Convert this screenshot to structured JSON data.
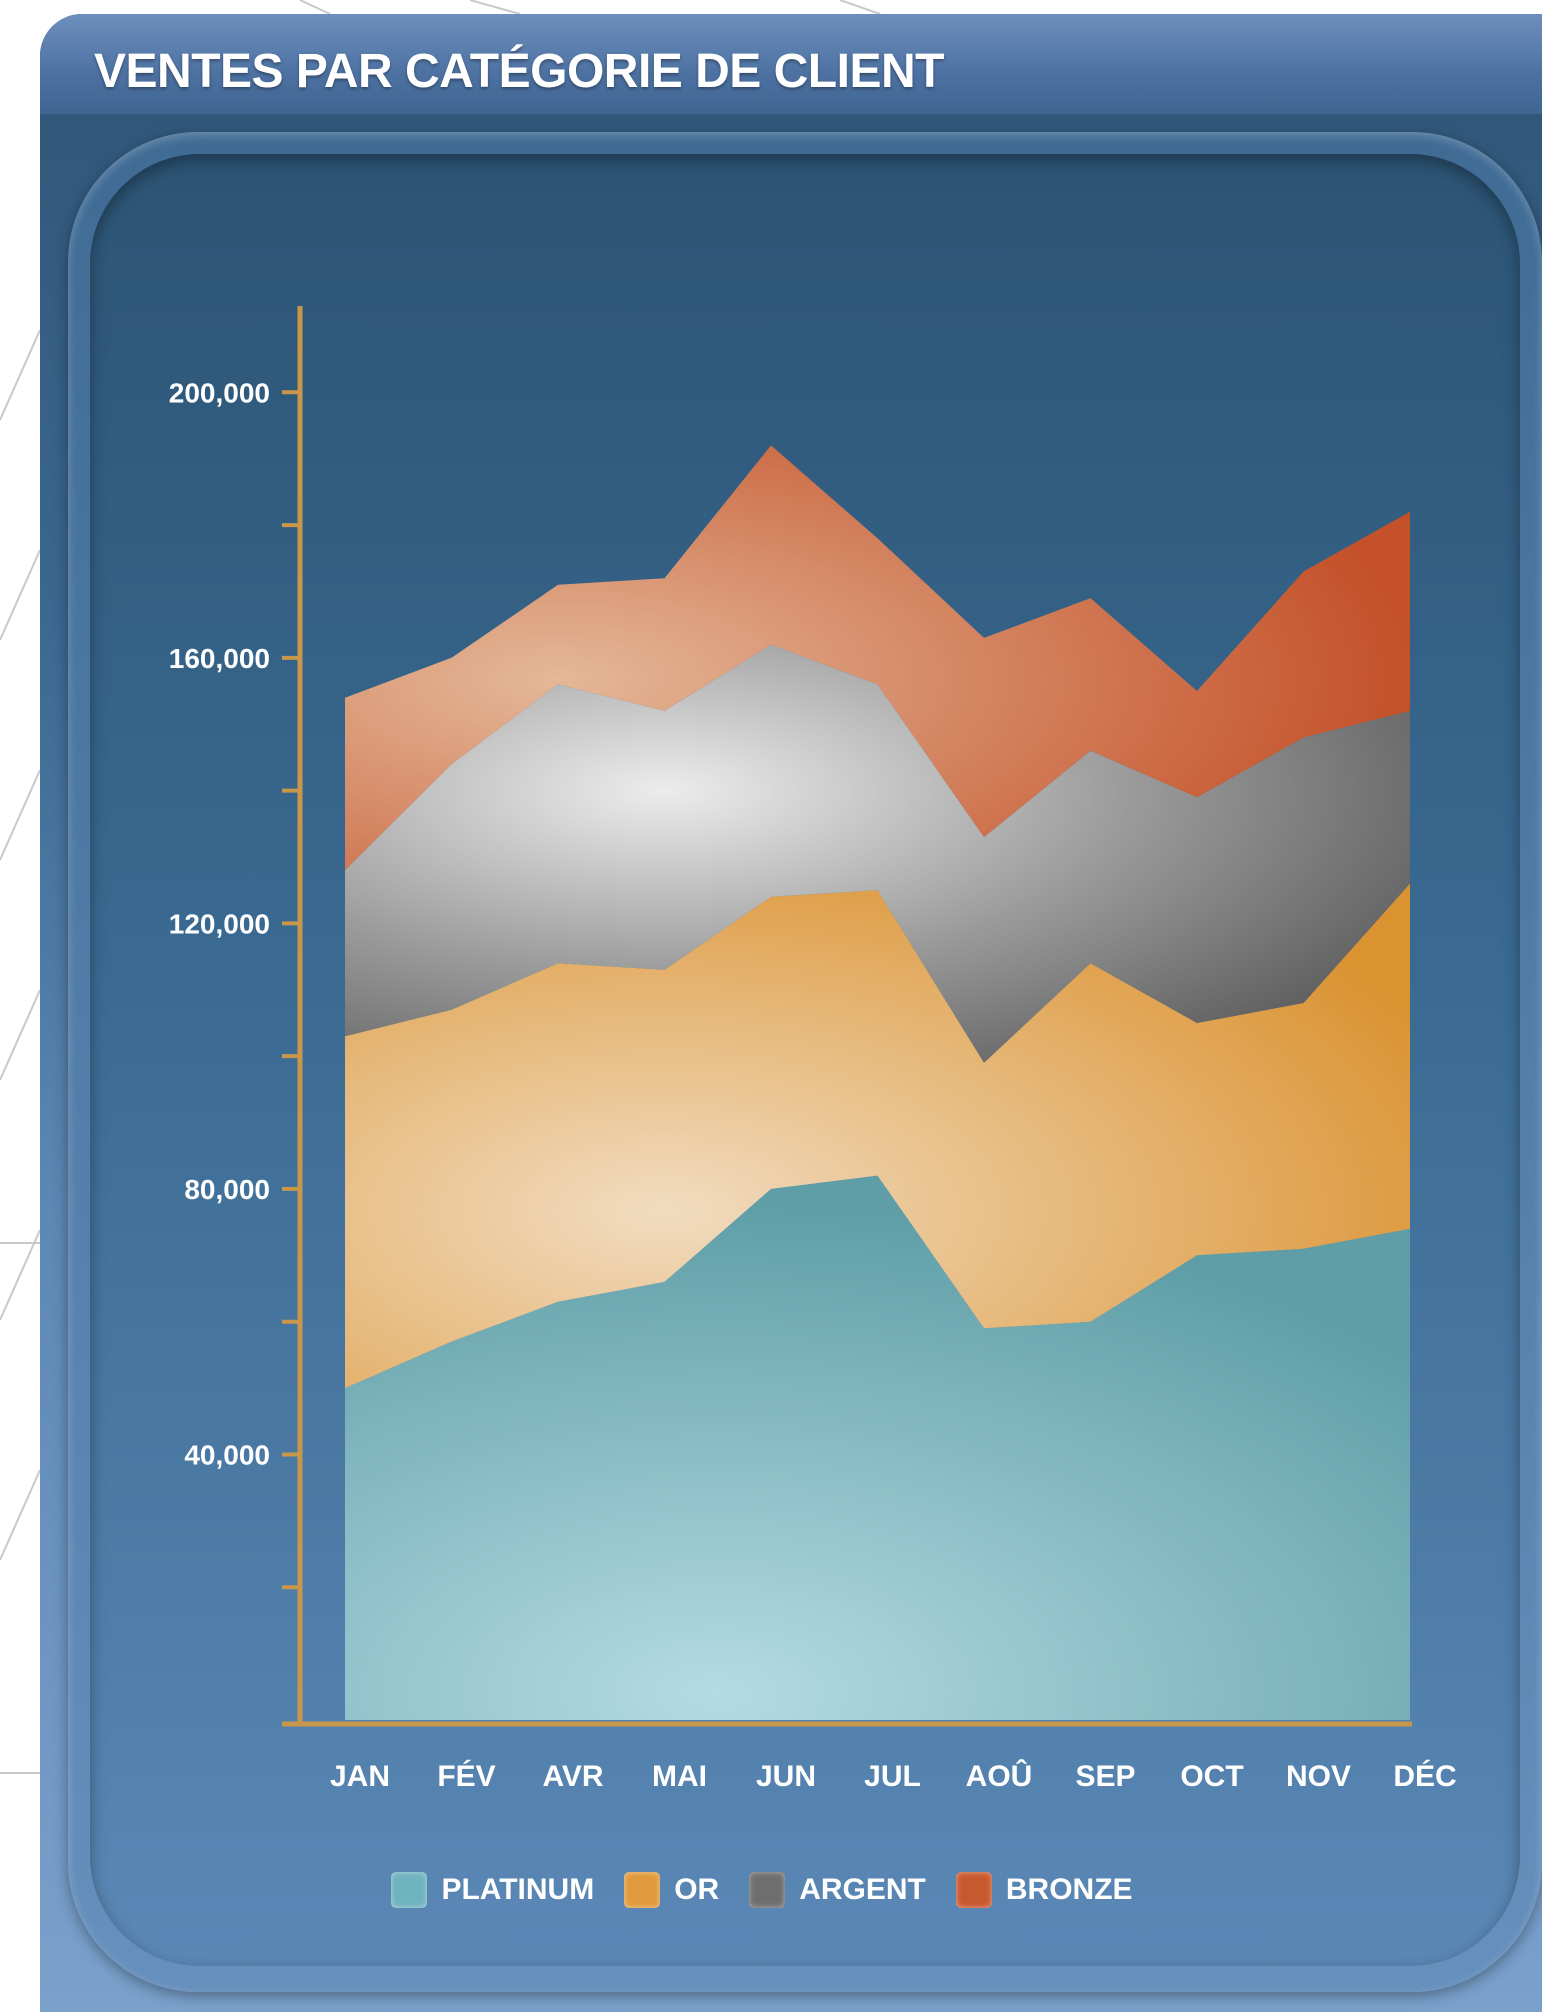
{
  "title": "VENTES PAR CATÉGORIE DE CLIENT",
  "chart_data": {
    "type": "area",
    "stacked": true,
    "categories": [
      "JAN",
      "FÉV",
      "AVR",
      "MAI",
      "JUN",
      "JUL",
      "AOÛ",
      "SEP",
      "OCT",
      "NOV",
      "DÉC"
    ],
    "y_ticks": [
      "40,000",
      "80,000",
      "120,000",
      "160,000",
      "200,000"
    ],
    "y_tick_values": [
      40000,
      80000,
      120000,
      160000,
      200000
    ],
    "ylim": [
      0,
      213000
    ],
    "xlabel": "",
    "ylabel": "",
    "legend_position": "bottom",
    "grid": false,
    "series": [
      {
        "name": "PLATINUM",
        "color": "#6fb3bf",
        "values": [
          50000,
          57000,
          63000,
          66000,
          80000,
          82000,
          59000,
          60000,
          70000,
          71000,
          74000
        ]
      },
      {
        "name": "OR",
        "color": "#e09a3c",
        "values": [
          53000,
          50000,
          51000,
          47000,
          44000,
          43000,
          40000,
          54000,
          35000,
          37000,
          52000
        ]
      },
      {
        "name": "ARGENT",
        "color": "#7a7a7a",
        "values": [
          25000,
          37000,
          42000,
          39000,
          38000,
          31000,
          34000,
          32000,
          34000,
          40000,
          26000
        ]
      },
      {
        "name": "BRONZE",
        "color": "#c8582e",
        "values": [
          26000,
          16000,
          15000,
          20000,
          30000,
          22000,
          30000,
          23000,
          16000,
          25000,
          30000
        ]
      }
    ]
  }
}
